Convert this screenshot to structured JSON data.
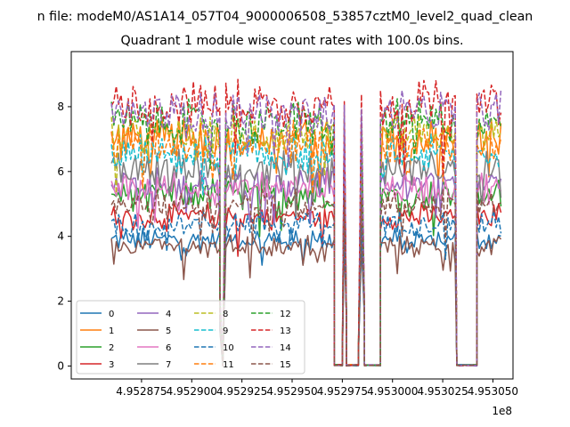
{
  "chart_data": {
    "type": "line",
    "suptitle": "n file: modeM0/AS1A14_057T04_9000006508_53857cztM0_level2_quad_clean",
    "title": "Quadrant 1 module wise count rates with 100.0s bins.",
    "xlabel": "",
    "ylabel": "",
    "x_offset_label": "1e8",
    "xlim": [
      4.95284,
      4.95306
    ],
    "ylim": [
      -0.4,
      9.7
    ],
    "x_ticks": [
      4.952875,
      4.9529,
      4.952925,
      4.95295,
      4.952975,
      4.953,
      4.953025,
      4.95305
    ],
    "x_tick_labels": [
      "4.952875",
      "4.952900",
      "4.952925",
      "4.952950",
      "4.952975",
      "4.953000",
      "4.953025",
      "4.953050"
    ],
    "y_ticks": [
      0,
      2,
      4,
      6,
      8
    ],
    "y_tick_labels": [
      "0",
      "2",
      "4",
      "6",
      "8"
    ],
    "segments": [
      {
        "x": [
          4.95286,
          4.952914
        ],
        "state": "active"
      },
      {
        "x": [
          4.952914,
          4.952917
        ],
        "state": "dip"
      },
      {
        "x": [
          4.952917,
          4.952971
        ],
        "state": "active"
      },
      {
        "x": [
          4.952971,
          4.952975
        ],
        "state": "gap"
      },
      {
        "x": [
          4.952975,
          4.952977
        ],
        "state": "spike"
      },
      {
        "x": [
          4.952977,
          4.952983
        ],
        "state": "gap"
      },
      {
        "x": [
          4.952983,
          4.952986
        ],
        "state": "spike"
      },
      {
        "x": [
          4.952986,
          4.952994
        ],
        "state": "gap"
      },
      {
        "x": [
          4.952994,
          4.953032
        ],
        "state": "active"
      },
      {
        "x": [
          4.953032,
          4.953042
        ],
        "state": "gap"
      },
      {
        "x": [
          4.953042,
          4.953054
        ],
        "state": "active"
      }
    ],
    "series": [
      {
        "name": "0",
        "color": "#1f77b4",
        "dash": "solid",
        "level": 3.9
      },
      {
        "name": "1",
        "color": "#ff7f0e",
        "dash": "solid",
        "level": 7.0
      },
      {
        "name": "2",
        "color": "#2ca02c",
        "dash": "solid",
        "level": 5.3
      },
      {
        "name": "3",
        "color": "#d62728",
        "dash": "solid",
        "level": 4.6
      },
      {
        "name": "4",
        "color": "#9467bd",
        "dash": "solid",
        "level": 5.6
      },
      {
        "name": "5",
        "color": "#8c564b",
        "dash": "solid",
        "level": 3.7
      },
      {
        "name": "6",
        "color": "#e377c2",
        "dash": "solid",
        "level": 5.5
      },
      {
        "name": "7",
        "color": "#7f7f7f",
        "dash": "solid",
        "level": 6.1
      },
      {
        "name": "8",
        "color": "#bcbd22",
        "dash": "dashed",
        "level": 7.1
      },
      {
        "name": "9",
        "color": "#17becf",
        "dash": "dashed",
        "level": 6.5
      },
      {
        "name": "10",
        "color": "#1f77b4",
        "dash": "dashed",
        "level": 4.4
      },
      {
        "name": "11",
        "color": "#ff7f0e",
        "dash": "dashed",
        "level": 6.9
      },
      {
        "name": "12",
        "color": "#2ca02c",
        "dash": "dashed",
        "level": 7.5
      },
      {
        "name": "13",
        "color": "#d62728",
        "dash": "dashed",
        "level": 8.1
      },
      {
        "name": "14",
        "color": "#9467bd",
        "dash": "dashed",
        "level": 7.8
      },
      {
        "name": "15",
        "color": "#8c564b",
        "dash": "dashed",
        "level": 5.0
      }
    ],
    "legend": {
      "placement": "lower-left",
      "columns": 4
    }
  }
}
